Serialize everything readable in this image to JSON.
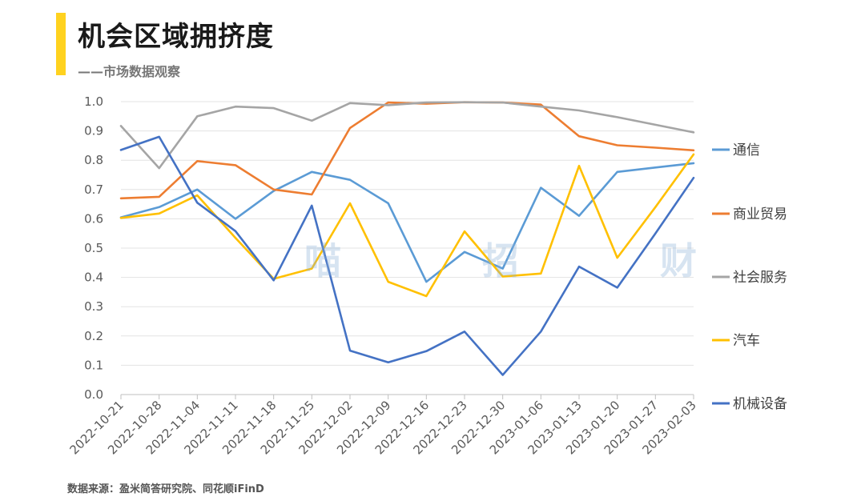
{
  "header": {
    "title": "机会区域拥挤度",
    "subtitle": "——市场数据观察"
  },
  "watermark": "喵 招 财",
  "footer": {
    "source": "数据来源：盈米简答研究院、同花顺iFinD"
  },
  "chart_data": {
    "type": "line",
    "title": "机会区域拥挤度",
    "ylim": [
      0,
      1.0
    ],
    "yticks": [
      "0.0",
      "0.1",
      "0.2",
      "0.3",
      "0.4",
      "0.5",
      "0.6",
      "0.7",
      "0.8",
      "0.9",
      "1.0"
    ],
    "grid": true,
    "legend_position": "right",
    "x": [
      "2022-10-21",
      "2022-10-28",
      "2022-11-04",
      "2022-11-11",
      "2022-11-18",
      "2022-11-25",
      "2022-12-02",
      "2022-12-09",
      "2022-12-16",
      "2022-12-23",
      "2022-12-30",
      "2023-01-06",
      "2023-01-13",
      "2023-01-20",
      "2023-01-27",
      "2023-02-03"
    ],
    "series": [
      {
        "name": "通信",
        "color": "#5b9bd5",
        "values": [
          0.605,
          0.64,
          0.7,
          0.6,
          0.695,
          0.76,
          0.733,
          0.653,
          0.385,
          0.487,
          0.43,
          0.706,
          0.61,
          0.76,
          0.775,
          0.79
        ]
      },
      {
        "name": "商业贸易",
        "color": "#ed7d31",
        "values": [
          0.67,
          0.675,
          0.797,
          0.783,
          0.7,
          0.683,
          0.91,
          0.997,
          0.993,
          0.998,
          0.997,
          0.99,
          0.882,
          0.851,
          0.843,
          0.834
        ]
      },
      {
        "name": "社会服务",
        "color": "#a5a5a5",
        "values": [
          0.917,
          0.773,
          0.95,
          0.983,
          0.978,
          0.935,
          0.995,
          0.988,
          0.997,
          0.998,
          0.997,
          0.983,
          0.97,
          0.947,
          0.921,
          0.895
        ]
      },
      {
        "name": "汽车",
        "color": "#ffc000",
        "values": [
          0.603,
          0.618,
          0.68,
          0.535,
          0.395,
          0.43,
          0.653,
          0.385,
          0.336,
          0.557,
          0.403,
          0.413,
          0.781,
          0.467,
          0.64,
          0.82
        ]
      },
      {
        "name": "机械设备",
        "color": "#4472c4",
        "values": [
          0.835,
          0.88,
          0.655,
          0.558,
          0.39,
          0.645,
          0.15,
          0.11,
          0.148,
          0.215,
          0.067,
          0.215,
          0.437,
          0.365,
          0.55,
          0.74
        ]
      }
    ]
  }
}
